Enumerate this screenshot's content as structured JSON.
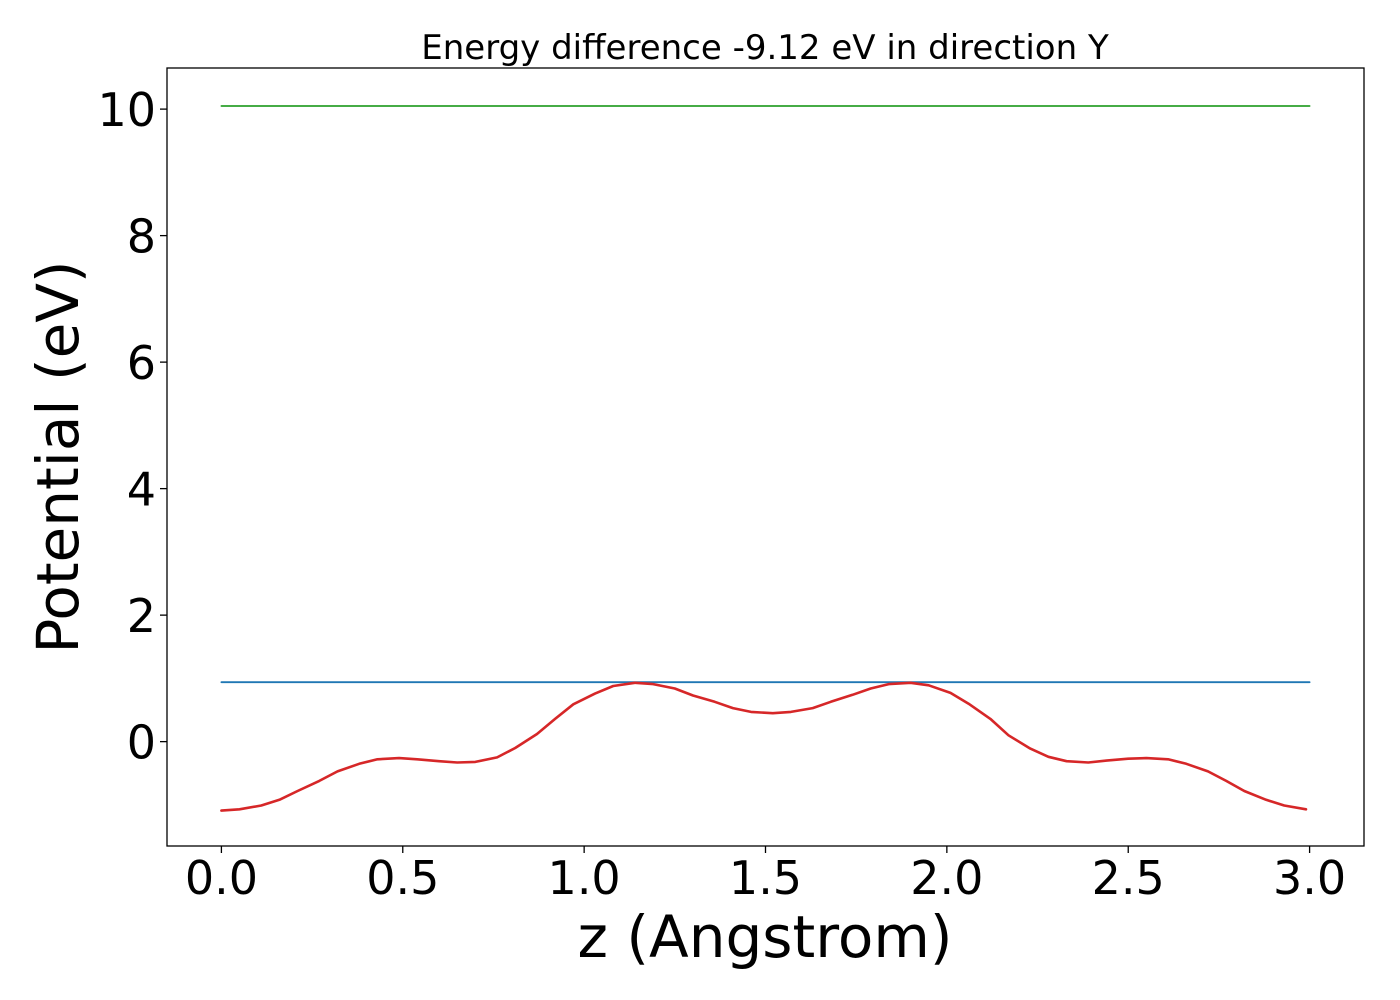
{
  "chart_data": {
    "type": "line",
    "title": "Energy difference -9.12 eV in direction Y",
    "xlabel": "z (Angstrom)",
    "ylabel": "Potential (eV)",
    "xlim": [
      -0.15,
      3.15
    ],
    "ylim": [
      -1.65,
      10.65
    ],
    "xticks": [
      0.0,
      0.5,
      1.0,
      1.5,
      2.0,
      2.5,
      3.0
    ],
    "xtick_labels": [
      "0.0",
      "0.5",
      "1.0",
      "1.5",
      "2.0",
      "2.5",
      "3.0"
    ],
    "yticks": [
      0,
      2,
      4,
      6,
      8,
      10
    ],
    "ytick_labels": [
      "0",
      "2",
      "4",
      "6",
      "8",
      "10"
    ],
    "grid": false,
    "series": [
      {
        "color": "#2ca02c",
        "x": [
          0.0,
          3.0
        ],
        "y": [
          10.05,
          10.05
        ]
      },
      {
        "color": "#1f77b4",
        "x": [
          0.0,
          3.0
        ],
        "y": [
          0.94,
          0.94
        ]
      },
      {
        "color": "#d62728",
        "x": [
          0.0,
          0.05,
          0.11,
          0.16,
          0.21,
          0.27,
          0.32,
          0.38,
          0.43,
          0.49,
          0.54,
          0.6,
          0.65,
          0.7,
          0.76,
          0.81,
          0.87,
          0.92,
          0.97,
          1.03,
          1.08,
          1.14,
          1.19,
          1.25,
          1.3,
          1.36,
          1.41,
          1.46,
          1.52,
          1.57,
          1.63,
          1.68,
          1.74,
          1.79,
          1.84,
          1.9,
          1.95,
          2.01,
          2.06,
          2.12,
          2.17,
          2.23,
          2.28,
          2.33,
          2.39,
          2.44,
          2.5,
          2.55,
          2.61,
          2.66,
          2.72,
          2.77,
          2.82,
          2.88,
          2.93,
          2.99
        ],
        "y": [
          -1.09,
          -1.07,
          -1.01,
          -0.92,
          -0.78,
          -0.62,
          -0.47,
          -0.35,
          -0.28,
          -0.26,
          -0.28,
          -0.31,
          -0.33,
          -0.32,
          -0.25,
          -0.1,
          0.12,
          0.36,
          0.59,
          0.76,
          0.88,
          0.93,
          0.91,
          0.84,
          0.73,
          0.63,
          0.53,
          0.47,
          0.45,
          0.47,
          0.53,
          0.63,
          0.74,
          0.84,
          0.91,
          0.93,
          0.89,
          0.77,
          0.6,
          0.36,
          0.1,
          -0.11,
          -0.24,
          -0.31,
          -0.33,
          -0.3,
          -0.27,
          -0.26,
          -0.28,
          -0.35,
          -0.47,
          -0.62,
          -0.78,
          -0.92,
          -1.01,
          -1.07
        ]
      }
    ]
  }
}
